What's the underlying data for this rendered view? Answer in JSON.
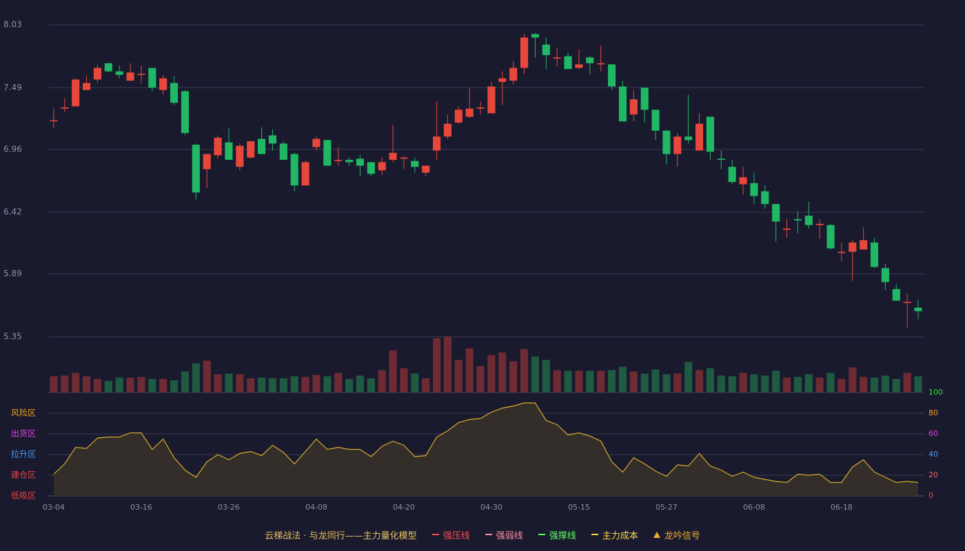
{
  "chart_data": {
    "type": "candlestick",
    "categories": [
      "03-04",
      null,
      null,
      null,
      null,
      null,
      null,
      null,
      "03-16",
      null,
      null,
      null,
      null,
      null,
      null,
      null,
      "03-26",
      null,
      null,
      null,
      null,
      null,
      null,
      null,
      "04-08",
      null,
      null,
      null,
      null,
      null,
      null,
      null,
      "04-20",
      null,
      null,
      null,
      null,
      null,
      null,
      null,
      "04-30",
      null,
      null,
      null,
      null,
      null,
      null,
      null,
      "05-15",
      null,
      null,
      null,
      null,
      null,
      null,
      null,
      "05-27",
      null,
      null,
      null,
      null,
      null,
      null,
      null,
      "06-08",
      null,
      null,
      null,
      null,
      null,
      null,
      null,
      "06-18",
      null,
      null,
      null,
      null,
      null,
      null,
      null
    ],
    "open": [
      7.21,
      7.31,
      7.33,
      7.47,
      7.56,
      7.7,
      7.63,
      7.55,
      7.6,
      7.66,
      7.47,
      7.53,
      7.46,
      7.0,
      6.79,
      6.91,
      7.02,
      6.81,
      6.89,
      7.05,
      7.08,
      7.01,
      6.92,
      6.65,
      6.98,
      7.04,
      6.86,
      6.87,
      6.88,
      6.85,
      6.78,
      6.87,
      6.88,
      6.86,
      6.76,
      6.95,
      7.07,
      7.19,
      7.24,
      7.31,
      7.27,
      7.54,
      7.55,
      7.66,
      7.95,
      7.86,
      7.74,
      7.76,
      7.66,
      7.75,
      7.69,
      7.69,
      7.5,
      7.26,
      7.49,
      7.3,
      7.12,
      6.92,
      7.07,
      6.95,
      7.24,
      6.88,
      6.81,
      6.66,
      6.67,
      6.6,
      6.49,
      6.27,
      6.36,
      6.39,
      6.31,
      6.31,
      6.07,
      6.08,
      6.1,
      6.16,
      5.94,
      5.76,
      5.64,
      5.6
    ],
    "high": [
      7.31,
      7.4,
      7.57,
      7.59,
      7.69,
      7.7,
      7.68,
      7.7,
      7.68,
      7.66,
      7.6,
      7.59,
      7.47,
      7.01,
      6.92,
      7.08,
      7.14,
      7.01,
      7.03,
      7.15,
      7.13,
      7.03,
      6.93,
      6.86,
      7.07,
      7.04,
      6.98,
      6.89,
      6.91,
      6.85,
      6.89,
      7.17,
      6.9,
      6.89,
      6.82,
      7.37,
      7.26,
      7.33,
      7.49,
      7.37,
      7.54,
      7.63,
      7.72,
      7.95,
      7.96,
      7.92,
      7.83,
      7.79,
      7.82,
      7.76,
      7.85,
      7.69,
      7.55,
      7.47,
      7.49,
      7.3,
      7.13,
      7.1,
      7.43,
      7.27,
      7.24,
      6.95,
      6.87,
      6.81,
      6.76,
      6.65,
      6.49,
      6.36,
      6.43,
      6.51,
      6.36,
      6.32,
      6.16,
      6.18,
      6.29,
      6.2,
      5.98,
      5.8,
      5.72,
      5.67
    ],
    "low": [
      7.14,
      7.28,
      7.33,
      7.47,
      7.53,
      7.62,
      7.57,
      7.55,
      7.53,
      7.46,
      7.43,
      7.34,
      7.08,
      6.53,
      6.63,
      6.88,
      6.87,
      6.78,
      6.88,
      6.92,
      6.95,
      6.87,
      6.6,
      6.65,
      6.95,
      6.82,
      6.82,
      6.82,
      6.73,
      6.73,
      6.74,
      6.85,
      6.79,
      6.76,
      6.73,
      6.87,
      7.05,
      7.18,
      7.23,
      7.26,
      7.27,
      7.34,
      7.52,
      7.61,
      7.75,
      7.65,
      7.67,
      7.65,
      7.65,
      7.6,
      7.63,
      7.47,
      7.2,
      7.2,
      7.19,
      7.04,
      6.83,
      6.81,
      7.01,
      6.95,
      6.87,
      6.79,
      6.66,
      6.57,
      6.49,
      6.45,
      6.17,
      6.2,
      6.24,
      6.28,
      6.19,
      6.1,
      6.0,
      5.83,
      6.1,
      5.94,
      5.75,
      5.66,
      5.43,
      5.5
    ],
    "close": [
      7.21,
      7.32,
      7.56,
      7.53,
      7.66,
      7.63,
      7.6,
      7.62,
      7.61,
      7.49,
      7.57,
      7.36,
      7.1,
      6.59,
      6.92,
      7.06,
      6.87,
      6.99,
      7.03,
      6.92,
      7.01,
      6.87,
      6.65,
      6.85,
      7.05,
      6.82,
      6.87,
      6.85,
      6.82,
      6.75,
      6.85,
      6.93,
      6.89,
      6.81,
      6.82,
      7.07,
      7.18,
      7.3,
      7.31,
      7.32,
      7.5,
      7.57,
      7.66,
      7.92,
      7.92,
      7.77,
      7.75,
      7.65,
      7.69,
      7.7,
      7.7,
      7.5,
      7.2,
      7.39,
      7.3,
      7.12,
      6.92,
      7.07,
      7.04,
      7.18,
      6.94,
      6.87,
      6.68,
      6.72,
      6.56,
      6.49,
      6.34,
      6.28,
      6.35,
      6.31,
      6.32,
      6.11,
      6.08,
      6.16,
      6.18,
      5.95,
      5.82,
      5.66,
      5.65,
      5.57
    ],
    "up_color": "#e8483b",
    "down_color": "#20b864",
    "ylim": [
      5.35,
      8.03
    ],
    "yticks": [
      8.03,
      7.49,
      6.96,
      6.42,
      5.89,
      5.35
    ],
    "grid": true,
    "volume": {
      "values": [
        24,
        25,
        29,
        24,
        20,
        17,
        22,
        22,
        23,
        20,
        20,
        18,
        31,
        43,
        47,
        27,
        28,
        27,
        21,
        22,
        21,
        21,
        24,
        23,
        26,
        24,
        29,
        20,
        25,
        21,
        33,
        62,
        36,
        28,
        21,
        80,
        82,
        48,
        65,
        39,
        55,
        59,
        46,
        64,
        53,
        48,
        33,
        32,
        32,
        32,
        32,
        33,
        38,
        31,
        28,
        34,
        27,
        28,
        45,
        33,
        36,
        25,
        24,
        29,
        27,
        25,
        32,
        22,
        23,
        27,
        22,
        29,
        20,
        37,
        23,
        22,
        25,
        20,
        29,
        24
      ],
      "up_color": "#6e2b34",
      "down_color": "#1f5a42"
    },
    "indicator": {
      "type": "area",
      "values": [
        21,
        31,
        47,
        46,
        56,
        57,
        57,
        61,
        61,
        45,
        55,
        37,
        25,
        18,
        33,
        40,
        35,
        41,
        43,
        39,
        49,
        42,
        31,
        43,
        55,
        45,
        47,
        45,
        45,
        38,
        48,
        53,
        49,
        38,
        39,
        57,
        63,
        71,
        74,
        75,
        81,
        85,
        87,
        90,
        90,
        73,
        69,
        59,
        61,
        58,
        53,
        33,
        23,
        37,
        31,
        24,
        19,
        30,
        29,
        41,
        29,
        25,
        19,
        23,
        18,
        16,
        14,
        13,
        21,
        20,
        21,
        13,
        13,
        28,
        35,
        23,
        18,
        13,
        14,
        13
      ],
      "color": "#d9ac2a",
      "fill": "#332e2a",
      "ylim": [
        0,
        100
      ],
      "yticks": [
        0,
        20,
        40,
        60,
        80,
        100
      ],
      "tick_colors": [
        "#e84545",
        "#e86a6a",
        "#4a9cf0",
        "#e040e0",
        "#f0a020",
        "#30e030"
      ],
      "zones": [
        {
          "label": "风险区",
          "value": 80,
          "color": "#f0a020"
        },
        {
          "label": "出货区",
          "value": 60,
          "color": "#e040e0"
        },
        {
          "label": "拉升区",
          "value": 40,
          "color": "#4a9cf0"
        },
        {
          "label": "建仓区",
          "value": 20,
          "color": "#e84545"
        },
        {
          "label": "低吸区",
          "value": 0,
          "color": "#e84545"
        }
      ]
    },
    "legend": {
      "title": "云梯战法 · 与龙同行——主力量化模型",
      "title_color": "#e8c060",
      "items": [
        {
          "name": "强压线",
          "color": "#ff4d4d",
          "style": "solid"
        },
        {
          "name": "强弱线",
          "color": "#ff8fa0",
          "style": "dashed"
        },
        {
          "name": "强撑线",
          "color": "#5cff5c",
          "style": "solid"
        },
        {
          "name": "主力成本",
          "color": "#ffd84a",
          "style": "dashed"
        },
        {
          "name": "龙吟信号",
          "color": "#f0b030",
          "style": "triangle"
        }
      ]
    }
  }
}
